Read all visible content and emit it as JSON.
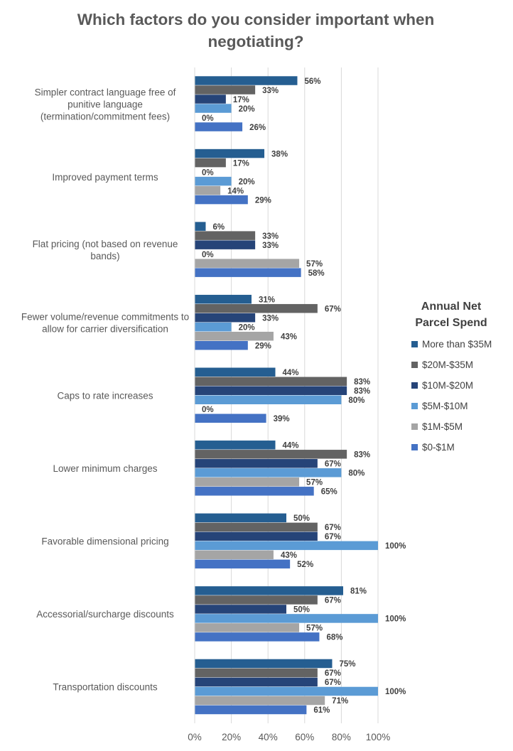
{
  "chart_data": {
    "type": "bar",
    "orientation": "horizontal",
    "title": "Which factors do you consider important when negotiating?",
    "legend_title": "Annual Net Parcel Spend",
    "legend_position": "right",
    "grid": true,
    "xlim": [
      0,
      100
    ],
    "x_ticks": [
      "0%",
      "20%",
      "40%",
      "60%",
      "80%",
      "100%"
    ],
    "categories": [
      "Simpler contract language free of punitive language (termination/commitment fees)",
      "Improved payment terms",
      "Flat pricing (not based on revenue bands)",
      "Fewer volume/revenue commitments to allow for carrier diversification",
      "Caps to rate increases",
      "Lower minimum charges",
      "Favorable dimensional pricing",
      "Accessorial/surcharge discounts",
      "Transportation discounts"
    ],
    "series": [
      {
        "name": "More than $35M",
        "color": "#255E91",
        "values": [
          56,
          38,
          6,
          31,
          44,
          44,
          50,
          81,
          75
        ],
        "labels": [
          "56%",
          "38%",
          "6%",
          "31%",
          "44%",
          "44%",
          "50%",
          "81%",
          "75%"
        ]
      },
      {
        "name": "$20M-$35M",
        "color": "#636363",
        "values": [
          33,
          17,
          33,
          67,
          83,
          83,
          67,
          67,
          67
        ],
        "labels": [
          "33%",
          "17%",
          "33%",
          "67%",
          "83%",
          "83%",
          "67%",
          "67%",
          "67%"
        ]
      },
      {
        "name": "$10M-$20M",
        "color": "#264478",
        "values": [
          17,
          0,
          33,
          33,
          83,
          67,
          67,
          50,
          67
        ],
        "labels": [
          "17%",
          "0%",
          "33%",
          "33%",
          "83%",
          "67%",
          "67%",
          "50%",
          "67%"
        ]
      },
      {
        "name": "$5M-$10M",
        "color": "#5B9BD5",
        "values": [
          20,
          20,
          0,
          20,
          80,
          80,
          100,
          100,
          100
        ],
        "labels": [
          "20%",
          "20%",
          "0%",
          "20%",
          "80%",
          "80%",
          "100%",
          "100%",
          "100%"
        ]
      },
      {
        "name": "$1M-$5M",
        "color": "#A5A5A5",
        "values": [
          0,
          14,
          57,
          43,
          0,
          57,
          43,
          57,
          71
        ],
        "labels": [
          "0%",
          "14%",
          "57%",
          "43%",
          "0%",
          "57%",
          "43%",
          "57%",
          "71%"
        ]
      },
      {
        "name": "$0-$1M",
        "color": "#4472C4",
        "values": [
          26,
          29,
          58,
          29,
          39,
          65,
          52,
          68,
          61
        ],
        "labels": [
          "26%",
          "29%",
          "58%",
          "29%",
          "39%",
          "65%",
          "52%",
          "68%",
          "61%"
        ]
      }
    ]
  }
}
